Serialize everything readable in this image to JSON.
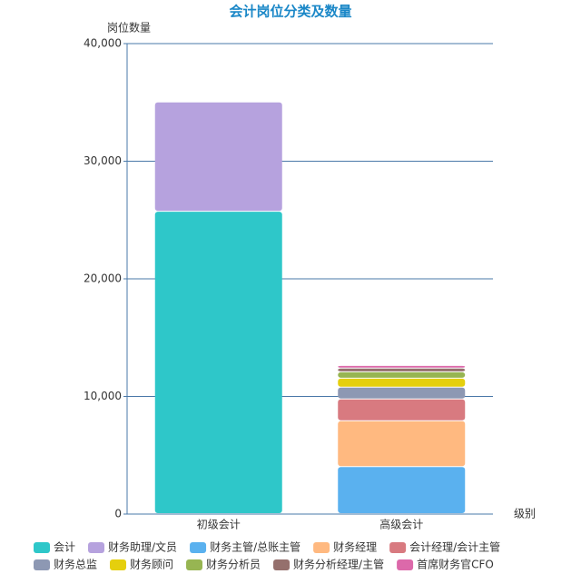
{
  "chart_data": {
    "type": "stacked_bar",
    "title": "会计岗位分类及数量",
    "y_label": "岗位数量",
    "x_label": "级别",
    "categories": [
      "初级会计",
      "高级会计"
    ],
    "series": [
      {
        "name": "会计",
        "color": "#2ec7c9",
        "values": [
          25700,
          null
        ]
      },
      {
        "name": "财务助理/文员",
        "color": "#b6a2de",
        "values": [
          9300,
          null
        ]
      },
      {
        "name": "财务主管/总账主管",
        "color": "#5ab1ef",
        "values": [
          null,
          4000
        ]
      },
      {
        "name": "财务经理",
        "color": "#ffb980",
        "values": [
          null,
          3900
        ]
      },
      {
        "name": "会计经理/会计主管",
        "color": "#d87a80",
        "values": [
          null,
          1850
        ]
      },
      {
        "name": "财务总监",
        "color": "#8d98b3",
        "values": [
          null,
          1000
        ]
      },
      {
        "name": "财务顾问",
        "color": "#e5cf0d",
        "values": [
          null,
          770
        ]
      },
      {
        "name": "财务分析员",
        "color": "#97b552",
        "values": [
          null,
          540
        ]
      },
      {
        "name": "财务分析经理/主管",
        "color": "#95706d",
        "values": [
          null,
          310
        ]
      },
      {
        "name": "首席财务官CFO",
        "color": "#dc69aa",
        "values": [
          null,
          230
        ]
      }
    ],
    "ylim": [
      0,
      40000
    ],
    "yticks": [
      0,
      {
        "value": 10000,
        "label": "10,000"
      },
      {
        "value": 20000,
        "label": "20,000"
      },
      {
        "value": 30000,
        "label": "30,000"
      },
      {
        "value": 40000,
        "label": "40,000"
      }
    ],
    "grid": true
  }
}
